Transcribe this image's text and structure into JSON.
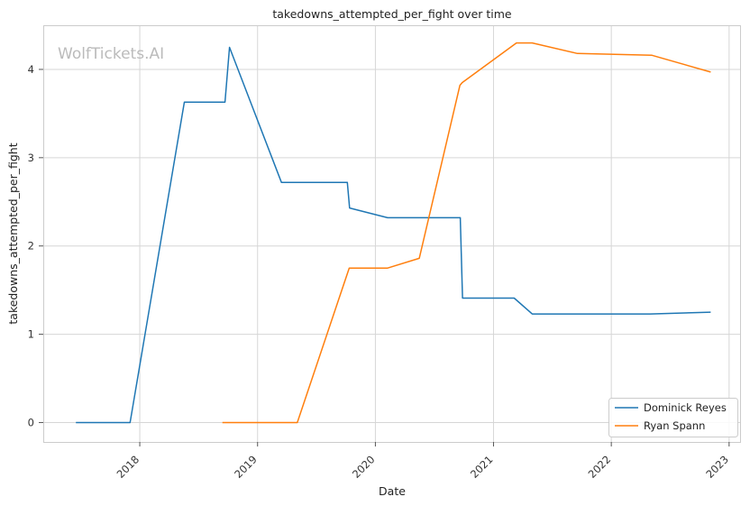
{
  "watermark": "WolfTickets.AI",
  "chart_data": {
    "type": "line",
    "title": "takedowns_attempted_per_fight over time",
    "xlabel": "Date",
    "ylabel": "takedowns_attempted_per_fight",
    "x_tick_labels": [
      "2018",
      "2019",
      "2020",
      "2021",
      "2022",
      "2023"
    ],
    "y_tick_labels": [
      "0",
      "1",
      "2",
      "3",
      "4"
    ],
    "y_ticks": [
      0,
      1,
      2,
      3,
      4
    ],
    "xlim": [
      "2017-03-08",
      "2023-02-04"
    ],
    "ylim": [
      -0.22,
      4.5
    ],
    "grid": true,
    "legend_position": "bottom-right",
    "colors": [
      "#1f77b4",
      "#ff7f0e"
    ],
    "series": [
      {
        "name": "Dominick Reyes",
        "x": [
          "2017-06-17",
          "2017-12-02",
          "2018-05-19",
          "2018-09-22",
          "2018-10-06",
          "2019-03-16",
          "2019-10-06",
          "2019-10-13",
          "2020-02-08",
          "2020-09-20",
          "2020-09-27",
          "2021-03-06",
          "2021-05-01",
          "2022-05-01",
          "2022-11-05"
        ],
        "values": [
          0,
          0,
          3.63,
          3.63,
          4.25,
          2.72,
          2.72,
          2.43,
          2.32,
          2.32,
          1.41,
          1.41,
          1.23,
          1.23,
          1.25
        ]
      },
      {
        "name": "Ryan Spann",
        "x": [
          "2018-09-14",
          "2019-05-04",
          "2019-10-12",
          "2020-02-08",
          "2020-05-16",
          "2020-09-19",
          "2020-09-26",
          "2021-03-13",
          "2021-05-01",
          "2021-09-18",
          "2022-05-07",
          "2022-11-05"
        ],
        "values": [
          0,
          0,
          1.75,
          1.75,
          1.86,
          3.82,
          3.85,
          4.3,
          4.3,
          4.18,
          4.16,
          3.97
        ]
      }
    ]
  }
}
